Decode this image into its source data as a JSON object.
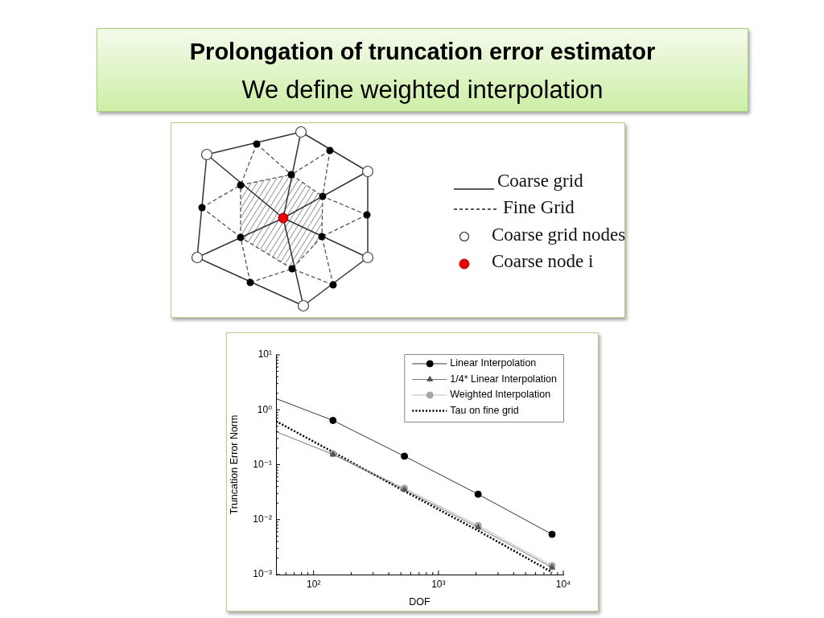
{
  "chart_data": [
    {
      "type": "other",
      "title": "Prolongation of truncation error estimator",
      "subtitle": "We define weighted interpolation",
      "annotations": [
        "Coarse grid",
        "Fine Grid",
        "Coarse grid nodes",
        "Coarse node i"
      ]
    },
    {
      "type": "line",
      "xlabel": "DOF",
      "ylabel": "Truncation Error Norm",
      "log": "xy",
      "xlim": [
        50,
        10000
      ],
      "ylim": [
        0.001,
        10
      ],
      "xticks": [
        {
          "value": 60,
          "label": null
        },
        {
          "value": 70,
          "label": null
        },
        {
          "value": 80,
          "label": null
        },
        {
          "value": 90,
          "label": null
        },
        {
          "value": 100,
          "label": "10²"
        },
        {
          "value": 200,
          "label": null
        },
        {
          "value": 300,
          "label": null
        },
        {
          "value": 400,
          "label": null
        },
        {
          "value": 500,
          "label": null
        },
        {
          "value": 600,
          "label": null
        },
        {
          "value": 700,
          "label": null
        },
        {
          "value": 800,
          "label": null
        },
        {
          "value": 900,
          "label": null
        },
        {
          "value": 1000,
          "label": "10³"
        },
        {
          "value": 2000,
          "label": null
        },
        {
          "value": 3000,
          "label": null
        },
        {
          "value": 4000,
          "label": null
        },
        {
          "value": 5000,
          "label": null
        },
        {
          "value": 6000,
          "label": null
        },
        {
          "value": 7000,
          "label": null
        },
        {
          "value": 8000,
          "label": null
        },
        {
          "value": 9000,
          "label": null
        },
        {
          "value": 10000,
          "label": "10⁴"
        }
      ],
      "yticks": [
        {
          "value": 0.001,
          "label": "10⁻³"
        },
        {
          "value": 0.002,
          "label": null
        },
        {
          "value": 0.003,
          "label": null
        },
        {
          "value": 0.004,
          "label": null
        },
        {
          "value": 0.005,
          "label": null
        },
        {
          "value": 0.006,
          "label": null
        },
        {
          "value": 0.007,
          "label": null
        },
        {
          "value": 0.008,
          "label": null
        },
        {
          "value": 0.009,
          "label": null
        },
        {
          "value": 0.01,
          "label": "10⁻²"
        },
        {
          "value": 0.02,
          "label": null
        },
        {
          "value": 0.03,
          "label": null
        },
        {
          "value": 0.04,
          "label": null
        },
        {
          "value": 0.05,
          "label": null
        },
        {
          "value": 0.06,
          "label": null
        },
        {
          "value": 0.07,
          "label": null
        },
        {
          "value": 0.08,
          "label": null
        },
        {
          "value": 0.09,
          "label": null
        },
        {
          "value": 0.1,
          "label": "10⁻¹"
        },
        {
          "value": 0.2,
          "label": null
        },
        {
          "value": 0.3,
          "label": null
        },
        {
          "value": 0.4,
          "label": null
        },
        {
          "value": 0.5,
          "label": null
        },
        {
          "value": 0.6,
          "label": null
        },
        {
          "value": 0.7,
          "label": null
        },
        {
          "value": 0.8,
          "label": null
        },
        {
          "value": 0.9,
          "label": null
        },
        {
          "value": 1,
          "label": "10⁰"
        },
        {
          "value": 2,
          "label": null
        },
        {
          "value": 3,
          "label": null
        },
        {
          "value": 4,
          "label": null
        },
        {
          "value": 5,
          "label": null
        },
        {
          "value": 6,
          "label": null
        },
        {
          "value": 7,
          "label": null
        },
        {
          "value": 8,
          "label": null
        },
        {
          "value": 9,
          "label": null
        },
        {
          "value": 10,
          "label": "10¹"
        }
      ],
      "legend": "top right",
      "series": [
        {
          "name": "Linear Interpolation",
          "color": "#000000",
          "x": [
            143,
            534,
            2080,
            8130
          ],
          "values": [
            0.64,
            0.143,
            0.029,
            0.0054
          ],
          "marker": "circle"
        },
        {
          "color": "#000000",
          "x": [
            50,
            143
          ],
          "values": [
            1.6,
            0.64
          ],
          "marker": "none"
        },
        {
          "name": "1/4* Linear Interpolation",
          "color": "#555555",
          "x": [
            143,
            534,
            2080,
            8130
          ],
          "values": [
            0.154,
            0.035,
            0.0072,
            0.00134
          ],
          "marker": "triangle"
        },
        {
          "color": "#555555",
          "x": [
            50,
            143
          ],
          "values": [
            0.4,
            0.154
          ],
          "marker": "none"
        },
        {
          "name": "Weighted Interpolation",
          "color": "#a6a6a6",
          "x": [
            143,
            534,
            2080,
            8130
          ],
          "values": [
            0.158,
            0.0373,
            0.0078,
            0.00145
          ],
          "marker": "circle"
        },
        {
          "name": "Tau on fine grid",
          "color": "#000000",
          "x": [
            50,
            143,
            534,
            2080,
            8130
          ],
          "values": [
            0.62,
            0.17,
            0.033,
            0.0063,
            0.0011
          ],
          "marker": "none",
          "line_style": "dotted"
        }
      ]
    }
  ]
}
